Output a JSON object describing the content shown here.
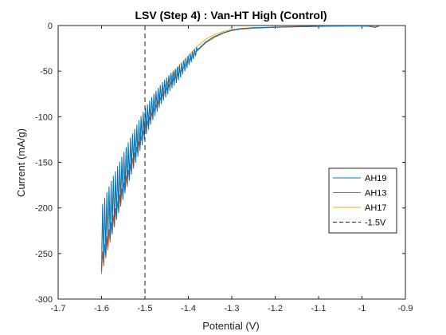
{
  "chart_data": {
    "type": "line",
    "title": "LSV (Step 4) : Van-HT High (Control)",
    "xlabel": "Potential (V)",
    "ylabel": "Current (mA/g)",
    "xlim": [
      -1.7,
      -0.9
    ],
    "ylim": [
      -300,
      0
    ],
    "xticks": [
      -1.7,
      -1.6,
      -1.5,
      -1.4,
      -1.3,
      -1.2,
      -1.1,
      -1.0,
      -0.9
    ],
    "xtick_labels": [
      "-1.7",
      "-1.6",
      "-1.5",
      "-1.4",
      "-1.3",
      "-1.2",
      "-1.1",
      "-1",
      "-0.9"
    ],
    "yticks": [
      0,
      -50,
      -100,
      -150,
      -200,
      -250,
      -300
    ],
    "ytick_labels": [
      "0",
      "-50",
      "-100",
      "-150",
      "-200",
      "-250",
      "-300"
    ],
    "grid": false,
    "legend_position": "right",
    "series": [
      {
        "name": "AH19",
        "color": "#0072BD",
        "noisy": true,
        "x": [
          -1.6,
          -1.58,
          -1.56,
          -1.54,
          -1.52,
          -1.5,
          -1.48,
          -1.46,
          -1.44,
          -1.42,
          -1.4,
          -1.38,
          -1.36,
          -1.34,
          -1.32,
          -1.3,
          -1.28,
          -1.25,
          -1.2,
          -1.15,
          -1.1,
          -1.05,
          -1.0,
          -0.98,
          -0.97,
          -0.96
        ],
        "y": [
          -230,
          -200,
          -175,
          -150,
          -127,
          -105,
          -87,
          -72,
          -60,
          -50,
          -38,
          -27,
          -18,
          -12,
          -8,
          -5,
          -3.5,
          -2.5,
          -1.8,
          -1.2,
          -0.8,
          -0.5,
          -0.5,
          -1,
          -2,
          -0.5
        ]
      },
      {
        "name": "AH13",
        "color": "#D95319",
        "noisy": false,
        "x": [
          -1.6,
          -1.58,
          -1.56,
          -1.54,
          -1.52,
          -1.5,
          -1.48,
          -1.46,
          -1.44,
          -1.42,
          -1.4,
          -1.38,
          -1.36,
          -1.34,
          -1.32,
          -1.3,
          -1.28,
          -1.25,
          -1.2,
          -1.15,
          -1.1,
          -1.05,
          -1.0,
          -0.98,
          -0.97,
          -0.96
        ],
        "y": [
          -262,
          -228,
          -196,
          -167,
          -140,
          -115,
          -95,
          -78,
          -64,
          -52,
          -40,
          -28,
          -19,
          -13,
          -8.5,
          -5.5,
          -4,
          -3,
          -2,
          -1.4,
          -1,
          -0.7,
          -0.6,
          -1,
          -2,
          -0.5
        ]
      },
      {
        "name": "AH17",
        "color": "#EDB120",
        "noisy": false,
        "x": [
          -1.6,
          -1.58,
          -1.56,
          -1.54,
          -1.52,
          -1.5,
          -1.48,
          -1.46,
          -1.44,
          -1.42,
          -1.4,
          -1.38,
          -1.36,
          -1.34,
          -1.32,
          -1.3,
          -1.28,
          -1.25,
          -1.2,
          -1.15,
          -1.1,
          -1.05,
          -1.0,
          -0.98,
          -0.97,
          -0.96
        ],
        "y": [
          -235,
          -205,
          -178,
          -152,
          -128,
          -106,
          -86,
          -70,
          -56,
          -44,
          -33,
          -23,
          -15,
          -10,
          -6.5,
          -4.5,
          -3.2,
          -2.3,
          -1.6,
          -1.1,
          -0.8,
          -0.5,
          -0.4,
          -0.8,
          -1.6,
          -0.3
        ]
      }
    ],
    "reference_line": {
      "name": "-1.5V",
      "x": -1.5,
      "style": "dashed",
      "color": "#222222"
    }
  }
}
